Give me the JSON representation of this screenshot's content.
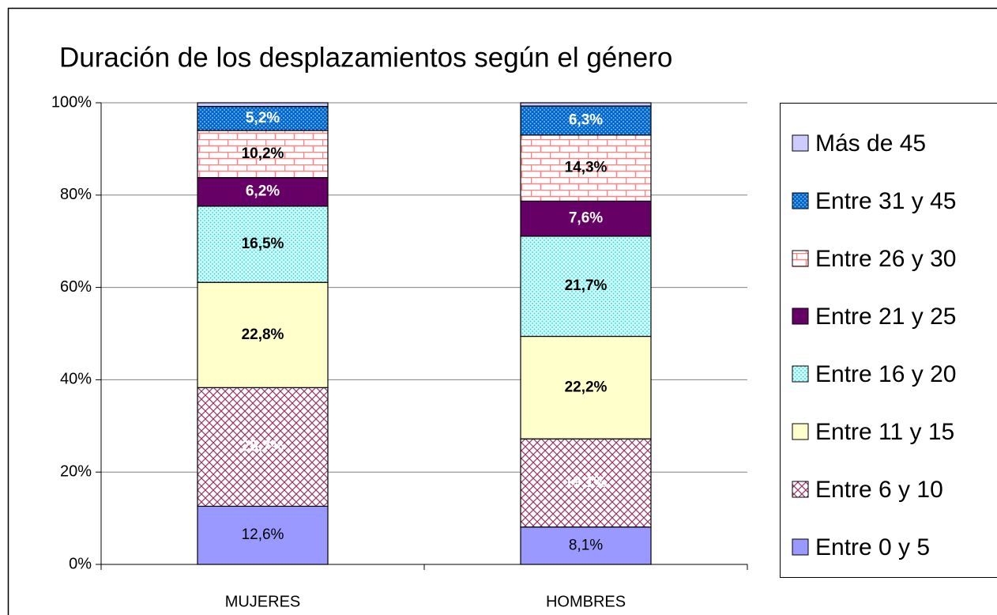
{
  "chart_data": {
    "type": "stacked_bar",
    "title": "Duración de los desplazamientos según el género",
    "categories": [
      "MUJERES",
      "HOMBRES"
    ],
    "series": [
      {
        "name": "Entre 0 y 5",
        "color": "#9999ff",
        "pattern": "solid",
        "values": [
          12.6,
          8.1
        ],
        "value_labels": [
          "12,6%",
          "8,1%"
        ]
      },
      {
        "name": "Entre 6 y 10",
        "color": "#993366",
        "pattern": "crosshatch",
        "values": [
          25.7,
          19.1
        ],
        "value_labels": [
          "25,7%",
          "19,1%"
        ]
      },
      {
        "name": "Entre 11 y 15",
        "color": "#ffffcc",
        "pattern": "solid",
        "values": [
          22.8,
          22.2
        ],
        "value_labels": [
          "22,8%",
          "22,2%"
        ]
      },
      {
        "name": "Entre 16 y 20",
        "color": "#33cccc",
        "pattern": "dots",
        "values": [
          16.5,
          21.7
        ],
        "value_labels": [
          "16,5%",
          "21,7%"
        ]
      },
      {
        "name": "Entre 21 y 25",
        "color": "#660066",
        "pattern": "solid",
        "values": [
          6.2,
          7.6
        ],
        "value_labels": [
          "6,2%",
          "7,6%"
        ]
      },
      {
        "name": "Entre 26 y 30",
        "color": "#ff8080",
        "pattern": "brick",
        "values": [
          10.2,
          14.3
        ],
        "value_labels": [
          "10,2%",
          "14,3%"
        ]
      },
      {
        "name": "Entre 31 y 45",
        "color": "#0066cc",
        "pattern": "darkdots",
        "values": [
          5.2,
          6.3
        ],
        "value_labels": [
          "5,2%",
          "6,3%"
        ]
      },
      {
        "name": "Más de 45",
        "color": "#ccccff",
        "pattern": "solid",
        "values": [
          0.8,
          0.7
        ]
      }
    ],
    "ylim": [
      0,
      100
    ],
    "yticks": [
      {
        "value": 0,
        "label": "0%"
      },
      {
        "value": 20,
        "label": "20%"
      },
      {
        "value": 40,
        "label": "40%"
      },
      {
        "value": 60,
        "label": "60%"
      },
      {
        "value": 80,
        "label": "80%"
      },
      {
        "value": 100,
        "label": "100%"
      }
    ],
    "grid": true,
    "legend": "right"
  }
}
